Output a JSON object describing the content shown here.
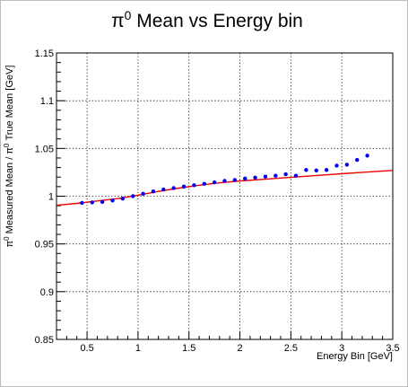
{
  "chart_data": {
    "type": "scatter",
    "title": "π⁰ Mean vs Energy bin",
    "title_parts": {
      "pi": "π",
      "sup": "0",
      "rest": " Mean vs Energy bin"
    },
    "xlabel": "Energy Bin [GeV]",
    "ylabel": "π⁰ Measured Mean / π⁰ True Mean [GeV]",
    "ylabel_parts": {
      "pi": "π",
      "sup": "0",
      "mid": " Measured Mean / ",
      "pi2": "π",
      "sup2": "0",
      "rest": " True Mean [GeV]"
    },
    "xlim": [
      0.2,
      3.5
    ],
    "ylim": [
      0.85,
      1.15
    ],
    "x_ticks": [
      "0.5",
      "1",
      "1.5",
      "2",
      "2.5",
      "3",
      "3.5"
    ],
    "y_ticks": [
      "0.85",
      "0.9",
      "0.95",
      "1",
      "1.05",
      "1.1",
      "1.15"
    ],
    "grid": true,
    "series": [
      {
        "color": "#0000ee",
        "x": [
          0.45,
          0.55,
          0.65,
          0.75,
          0.85,
          0.95,
          1.05,
          1.15,
          1.25,
          1.35,
          1.45,
          1.55,
          1.65,
          1.75,
          1.85,
          1.95,
          2.05,
          2.15,
          2.25,
          2.35,
          2.45,
          2.55,
          2.65,
          2.75,
          2.85,
          2.95,
          3.05,
          3.15,
          3.25
        ],
        "y": [
          0.993,
          0.9935,
          0.994,
          0.9955,
          0.9975,
          1.0,
          1.0025,
          1.005,
          1.007,
          1.0085,
          1.01,
          1.0115,
          1.013,
          1.0145,
          1.016,
          1.017,
          1.0185,
          1.0195,
          1.0205,
          1.0215,
          1.023,
          1.0215,
          1.0275,
          1.027,
          1.0275,
          1.032,
          1.033,
          1.038,
          1.0425
        ]
      }
    ],
    "fit_line": {
      "color": "#ee0000",
      "x": [
        0.2,
        0.4,
        0.6,
        0.8,
        1.0,
        1.2,
        1.4,
        1.6,
        1.8,
        2.0,
        2.2,
        2.4,
        2.6,
        2.8,
        3.0,
        3.2,
        3.5
      ],
      "y": [
        0.9905,
        0.9925,
        0.995,
        0.9975,
        1.001,
        1.005,
        1.0085,
        1.0115,
        1.014,
        1.016,
        1.0175,
        1.019,
        1.0205,
        1.022,
        1.0235,
        1.025,
        1.027
      ]
    }
  }
}
